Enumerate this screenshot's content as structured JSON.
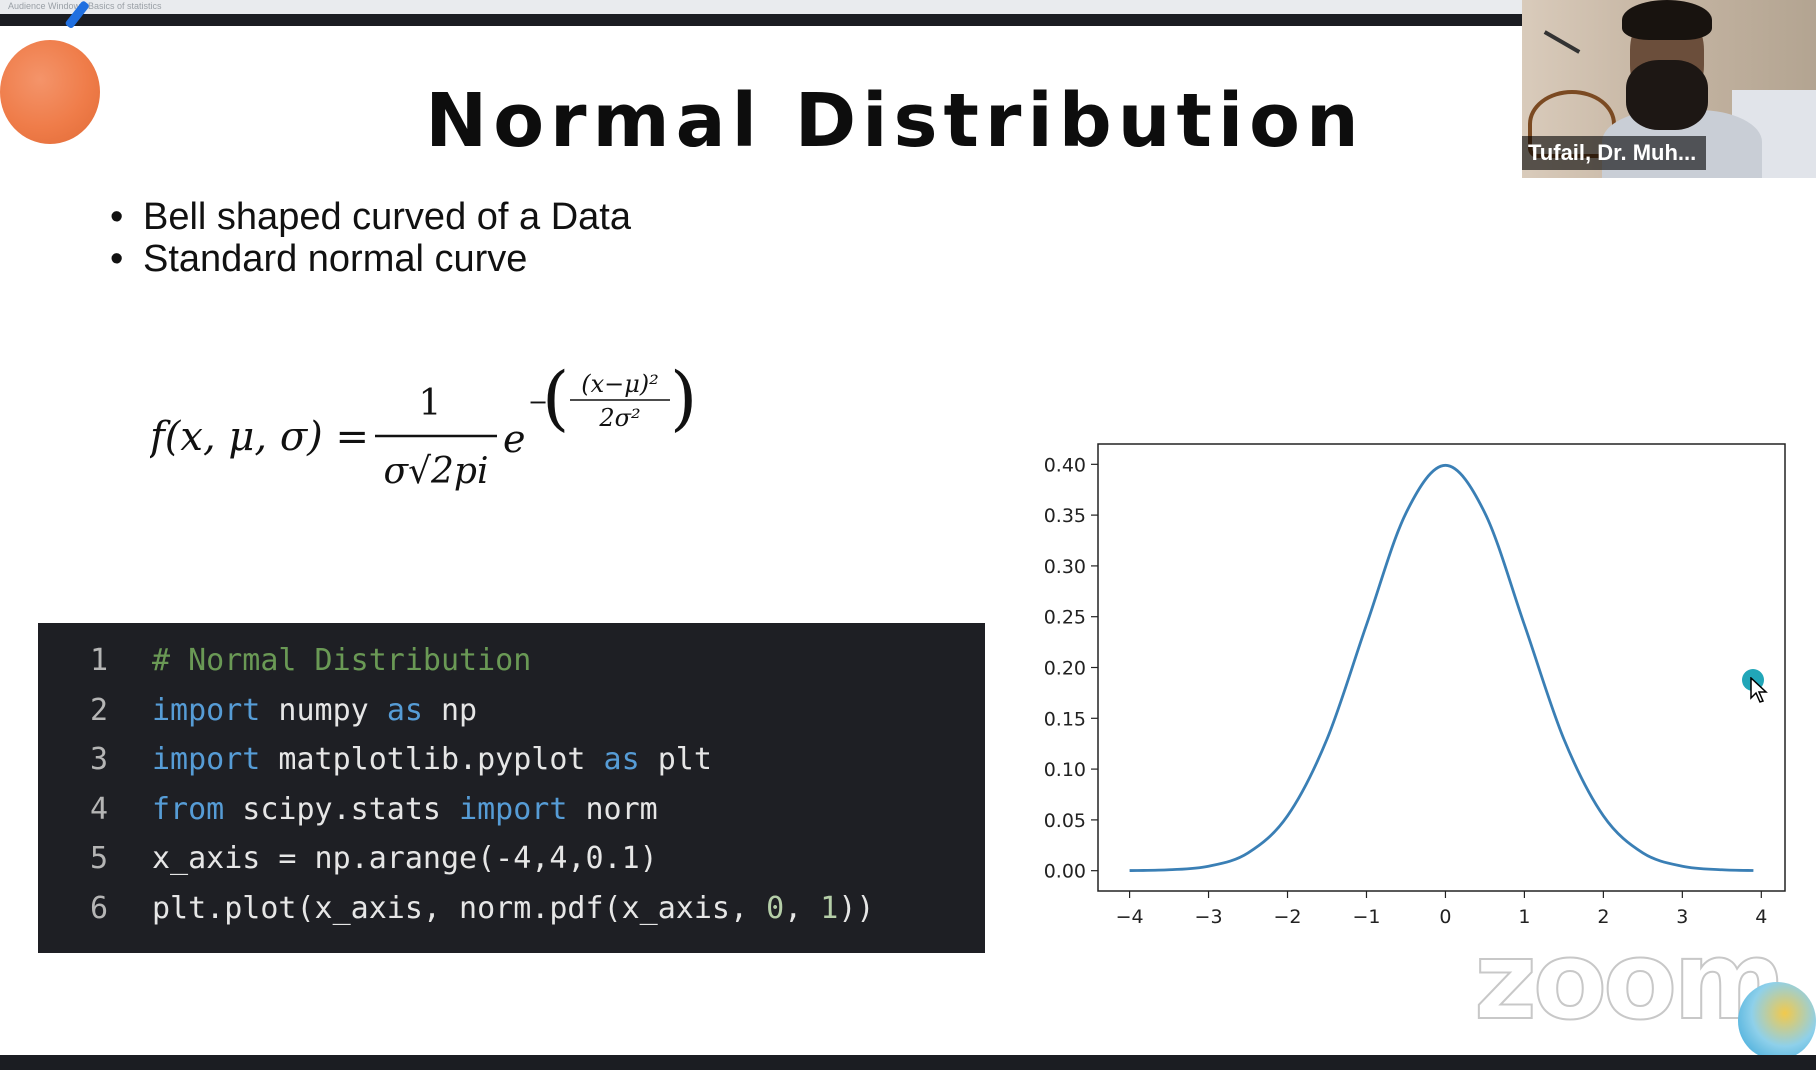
{
  "window": {
    "caption": "Audience Window - Basics of statistics"
  },
  "slide": {
    "title": "Normal Distribution",
    "bullets": [
      "Bell shaped curved of a Data",
      "Standard normal curve"
    ],
    "formula": {
      "lhs": "f(x, μ, σ) =",
      "numerator": "1",
      "denominator": "σ√2pi",
      "base": "e",
      "exp_sign": "−",
      "exp_num": "(x−μ)²",
      "exp_den": "2σ²"
    },
    "code": {
      "lines": [
        {
          "n": "1",
          "parts": [
            {
              "t": "# Normal Distribution",
              "c": "cmt"
            }
          ]
        },
        {
          "n": "2",
          "parts": [
            {
              "t": "import",
              "c": "kw"
            },
            {
              "t": " numpy ",
              "c": ""
            },
            {
              "t": "as",
              "c": "kw"
            },
            {
              "t": " np",
              "c": ""
            }
          ]
        },
        {
          "n": "3",
          "parts": [
            {
              "t": "import",
              "c": "kw"
            },
            {
              "t": " matplotlib.pyplot ",
              "c": ""
            },
            {
              "t": "as",
              "c": "kw"
            },
            {
              "t": " plt",
              "c": ""
            }
          ]
        },
        {
          "n": "4",
          "parts": [
            {
              "t": "from",
              "c": "kw"
            },
            {
              "t": " scipy.stats ",
              "c": ""
            },
            {
              "t": "import",
              "c": "kw"
            },
            {
              "t": " norm",
              "c": ""
            }
          ]
        },
        {
          "n": "5",
          "parts": [
            {
              "t": "x_axis = np.arange(-4,4,0.1)",
              "c": ""
            }
          ]
        },
        {
          "n": "6",
          "parts": [
            {
              "t": "plt.plot(x_axis, norm.pdf(x_axis, ",
              "c": ""
            },
            {
              "t": "0",
              "c": "num"
            },
            {
              "t": ", ",
              "c": ""
            },
            {
              "t": "1",
              "c": "num"
            },
            {
              "t": "))",
              "c": ""
            }
          ]
        }
      ]
    }
  },
  "chart_data": {
    "type": "line",
    "title": "",
    "xlabel": "",
    "ylabel": "",
    "xlim": [
      -4.4,
      4.3
    ],
    "ylim": [
      -0.02,
      0.42
    ],
    "xticks": [
      "−4",
      "−3",
      "−2",
      "−1",
      "0",
      "1",
      "2",
      "3",
      "4"
    ],
    "xtick_values": [
      -4,
      -3,
      -2,
      -1,
      0,
      1,
      2,
      3,
      4
    ],
    "yticks": [
      "0.00",
      "0.05",
      "0.10",
      "0.15",
      "0.20",
      "0.25",
      "0.30",
      "0.35",
      "0.40"
    ],
    "ytick_values": [
      0,
      0.05,
      0.1,
      0.15,
      0.2,
      0.25,
      0.3,
      0.35,
      0.4
    ],
    "grid": false,
    "line_color": "#3a7fb5",
    "series": [
      {
        "x": [
          -4,
          -3.5,
          -3,
          -2.5,
          -2,
          -1.5,
          -1,
          -0.5,
          0,
          0.5,
          1,
          1.5,
          2,
          2.5,
          3,
          3.5,
          3.9
        ],
        "y": [
          0.0001,
          0.0009,
          0.0044,
          0.0175,
          0.054,
          0.1295,
          0.242,
          0.352,
          0.399,
          0.352,
          0.242,
          0.1295,
          0.054,
          0.0175,
          0.0044,
          0.0009,
          0.0002
        ]
      }
    ]
  },
  "video": {
    "participant_name": "Tufail, Dr. Muh..."
  },
  "watermark": "zoom",
  "colors": {
    "accent_orb": "#ef7c49",
    "code_bg": "#1e1f24",
    "cursor": "#21a6b8"
  }
}
